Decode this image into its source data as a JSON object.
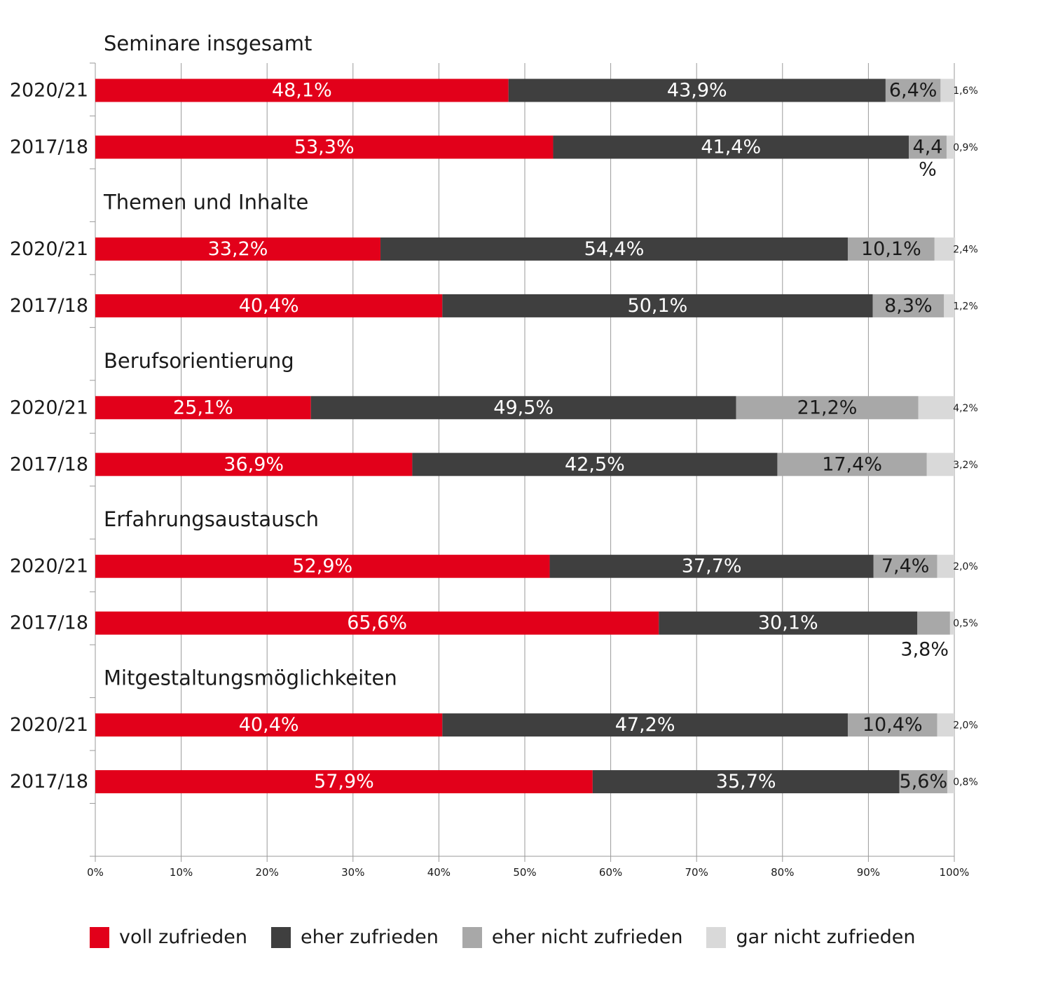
{
  "chart_data": {
    "type": "bar",
    "orientation": "horizontal",
    "stacked": true,
    "xlim": [
      0,
      100
    ],
    "x_ticks": [
      "0%",
      "10%",
      "20%",
      "30%",
      "40%",
      "50%",
      "60%",
      "70%",
      "80%",
      "90%",
      "100%"
    ],
    "grid": true,
    "legend_placement": "bottom",
    "series": [
      {
        "name": "voll zufrieden",
        "color": "#e2001a"
      },
      {
        "name": "eher zufrieden",
        "color": "#3f3f3f"
      },
      {
        "name": "eher nicht zufrieden",
        "color": "#a8a8a8"
      },
      {
        "name": "gar nicht zufrieden",
        "color": "#d9d9d9"
      }
    ],
    "groups": [
      {
        "title": "Seminare insgesamt",
        "bars": [
          {
            "label": "2020/21",
            "values": [
              48.1,
              43.9,
              6.4,
              1.6
            ],
            "value_labels": [
              "48,1%",
              "43,9%",
              "6,4%",
              "1,6%"
            ]
          },
          {
            "label": "2017/18",
            "values": [
              53.3,
              41.4,
              4.4,
              0.9
            ],
            "value_labels": [
              "53,3%",
              "41,4%",
              "4,4 %",
              "0,9%"
            ]
          }
        ]
      },
      {
        "title": "Themen und Inhalte",
        "bars": [
          {
            "label": "2020/21",
            "values": [
              33.2,
              54.4,
              10.1,
              2.4
            ],
            "value_labels": [
              "33,2%",
              "54,4%",
              "10,1%",
              "2,4%"
            ]
          },
          {
            "label": "2017/18",
            "values": [
              40.4,
              50.1,
              8.3,
              1.2
            ],
            "value_labels": [
              "40,4%",
              "50,1%",
              "8,3%",
              "1,2%"
            ]
          }
        ]
      },
      {
        "title": "Berufsorientierung",
        "bars": [
          {
            "label": "2020/21",
            "values": [
              25.1,
              49.5,
              21.2,
              4.2
            ],
            "value_labels": [
              "25,1%",
              "49,5%",
              "21,2%",
              "4,2%"
            ]
          },
          {
            "label": "2017/18",
            "values": [
              36.9,
              42.5,
              17.4,
              3.2
            ],
            "value_labels": [
              "36,9%",
              "42,5%",
              "17,4%",
              "3,2%"
            ]
          }
        ]
      },
      {
        "title": "Erfahrungsaustausch",
        "bars": [
          {
            "label": "2020/21",
            "values": [
              52.9,
              37.7,
              7.4,
              2.0
            ],
            "value_labels": [
              "52,9%",
              "37,7%",
              "7,4%",
              "2,0%"
            ]
          },
          {
            "label": "2017/18",
            "values": [
              65.6,
              30.1,
              3.8,
              0.5
            ],
            "value_labels": [
              "65,6%",
              "30,1%",
              "3,8%",
              "0,5%"
            ]
          }
        ]
      },
      {
        "title": "Mitgestaltungsmöglichkeiten",
        "bars": [
          {
            "label": "2020/21",
            "values": [
              40.4,
              47.2,
              10.4,
              2.0
            ],
            "value_labels": [
              "40,4%",
              "47,2%",
              "10,4%",
              "2,0%"
            ]
          },
          {
            "label": "2017/18",
            "values": [
              57.9,
              35.7,
              5.6,
              0.8
            ],
            "value_labels": [
              "57,9%",
              "35,7%",
              "5,6%",
              "0,8%"
            ]
          }
        ]
      }
    ]
  }
}
